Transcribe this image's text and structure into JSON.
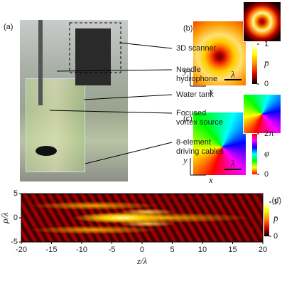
{
  "panels": {
    "a": {
      "label": "(a)",
      "annotations": [
        [
          "3D scanner"
        ],
        [
          "Needle",
          "hydrophone"
        ],
        [
          "Water tank"
        ],
        [
          "Focused",
          "vortex source"
        ],
        [
          "8-element",
          "driving cables"
        ]
      ]
    },
    "b": {
      "label": "(b)",
      "x_label": "x",
      "y_label": "y",
      "scale_label": "λ",
      "colorbar_ticks": [
        1,
        0
      ],
      "colorbar_label": "p̄"
    },
    "c": {
      "label": "(c)",
      "x_label": "x",
      "y_label": "y",
      "scale_label": "λ",
      "colorbar_ticks": [
        {
          "value": 6.283,
          "label": "2π"
        },
        0
      ],
      "colorbar_label": "φ"
    },
    "d": {
      "label": "(d)",
      "x_label": "z/λ",
      "y_label": "ρ/λ",
      "xlim": [
        -20,
        20
      ],
      "xticks": [
        -20,
        -15,
        -10,
        -5,
        0,
        5,
        10,
        15,
        20
      ],
      "ylim": [
        -5,
        5
      ],
      "yticks": [
        -5,
        0,
        5
      ],
      "colorbar_ticks": [
        1,
        0
      ],
      "colorbar_label": "p̄"
    }
  }
}
